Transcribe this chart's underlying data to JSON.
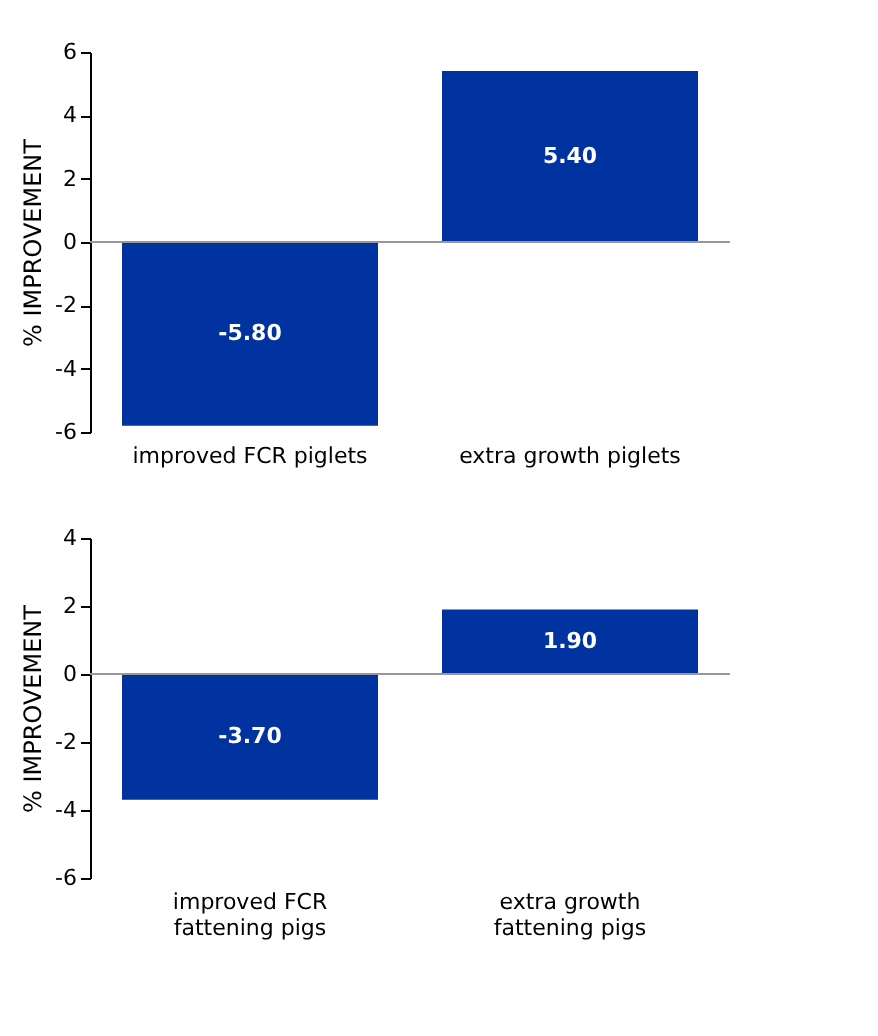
{
  "chart_data": [
    {
      "type": "bar",
      "ylabel": "% IMPROVEMENT",
      "categories": [
        "improved FCR piglets",
        "extra growth piglets"
      ],
      "values": [
        -5.8,
        5.4
      ],
      "color": "#0033a0",
      "ylim": [
        -6,
        6
      ],
      "yticks": [
        -6,
        -4,
        -2,
        0,
        2,
        4,
        6
      ],
      "value_labels": [
        "-5.80",
        "5.40"
      ],
      "ref_lines": [
        {
          "axis": "y",
          "value": 0,
          "color": "#999999"
        }
      ],
      "grid": false
    },
    {
      "type": "bar",
      "ylabel": "% IMPROVEMENT",
      "categories": [
        "improved FCR\nfattening pigs",
        "extra growth\nfattening pigs"
      ],
      "values": [
        -3.7,
        1.9
      ],
      "color": "#0033a0",
      "ylim": [
        -6,
        4
      ],
      "yticks": [
        -6,
        -4,
        -2,
        0,
        2,
        4
      ],
      "value_labels": [
        "-3.70",
        "1.90"
      ],
      "ref_lines": [
        {
          "axis": "y",
          "value": 0,
          "color": "#999999"
        }
      ],
      "grid": false
    }
  ]
}
